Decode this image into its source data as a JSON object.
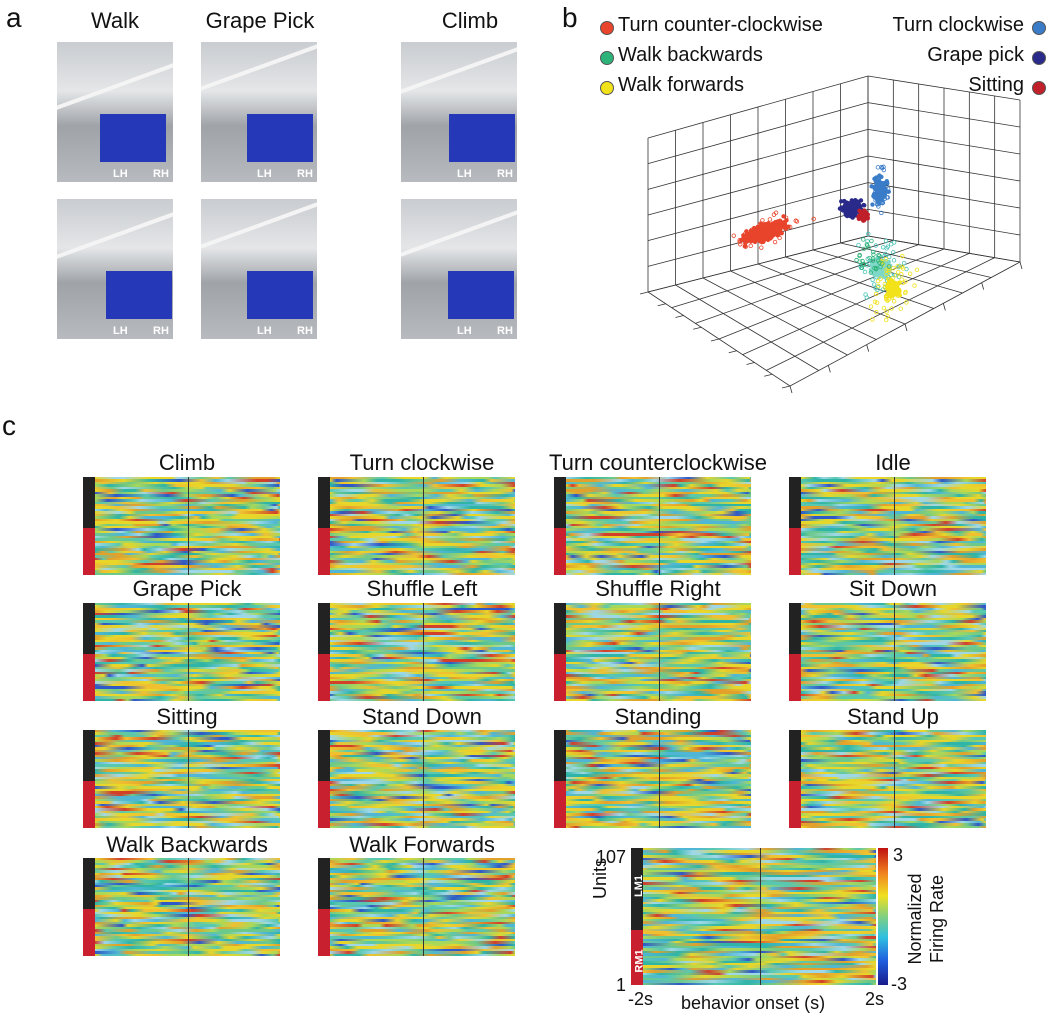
{
  "panel_a": {
    "label": "a",
    "titles": [
      "Walk",
      "Grape Pick",
      "Climb"
    ],
    "hand_labels": [
      "LH",
      "RH"
    ]
  },
  "panel_b": {
    "label": "b",
    "legend_left": [
      {
        "name": "Turn counter-clockwise",
        "color": "#e8452c"
      },
      {
        "name": "Walk backwards",
        "color": "#2db37a"
      },
      {
        "name": "Walk forwards",
        "color": "#f2e21a"
      }
    ],
    "legend_right": [
      {
        "name": "Turn clockwise",
        "color": "#3a7cc8"
      },
      {
        "name": "Grape pick",
        "color": "#2a2a8a"
      },
      {
        "name": "Sitting",
        "color": "#c0202a"
      }
    ]
  },
  "panel_c": {
    "label": "c",
    "heatmaps": [
      "Climb",
      "Turn clockwise",
      "Turn counterclockwise",
      "Idle",
      "Grape Pick",
      "Shuffle Left",
      "Shuffle Right",
      "Sit Down",
      "Sitting",
      "Stand Down",
      "Standing",
      "Stand Up",
      "Walk Backwards",
      "Walk Forwards"
    ],
    "example": {
      "y_label": "Units",
      "y_top": 107,
      "y_bottom": 1,
      "regions": [
        "LM1",
        "RM1"
      ],
      "x_start": "-2s",
      "x_end": "2s",
      "x_label": "behavior onset (s)",
      "colorbar_max": 3,
      "colorbar_min": -3,
      "colorbar_label": "Normalized Firing Rate"
    }
  }
}
